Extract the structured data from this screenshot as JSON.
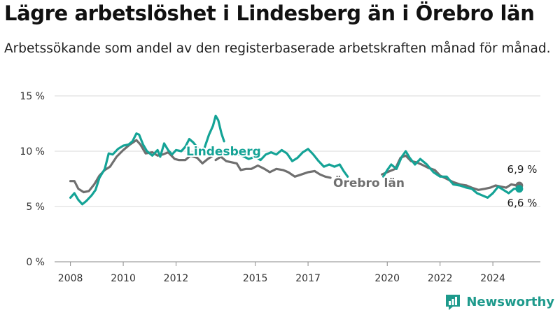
{
  "brand": {
    "name": "Newsworthy",
    "icon": "bar-chart-logo-icon",
    "color": "#1e9a8c"
  },
  "chart_data": {
    "type": "line",
    "title": "Lägre arbetslöshet i Lindesberg än i Örebro län",
    "subtitle": "Arbetssökande som andel av den registerbaserade arbetskraften månad för månad.",
    "xlabel": "",
    "ylabel": "",
    "xlim": [
      2007.4,
      2025.8
    ],
    "ylim": [
      0,
      15
    ],
    "y_ticks": [
      {
        "value": 0,
        "label": "0 %"
      },
      {
        "value": 5,
        "label": "5 %"
      },
      {
        "value": 10,
        "label": "10 %"
      },
      {
        "value": 15,
        "label": "15 %"
      }
    ],
    "x_ticks": [
      {
        "value": 2008,
        "label": "2008"
      },
      {
        "value": 2010,
        "label": "2010"
      },
      {
        "value": 2012,
        "label": "2012"
      },
      {
        "value": 2015,
        "label": "2015"
      },
      {
        "value": 2017,
        "label": "2017"
      },
      {
        "value": 2020,
        "label": "2020"
      },
      {
        "value": 2022,
        "label": "2022"
      },
      {
        "value": 2024,
        "label": "2024"
      }
    ],
    "grid": "horizontal",
    "series": [
      {
        "name": "Örebro län",
        "color": "#6f6f6f",
        "end_label": "6,9 %",
        "segments": [
          [
            [
              2008.0,
              7.3
            ],
            [
              2008.15,
              7.3
            ],
            [
              2008.3,
              6.6
            ],
            [
              2008.5,
              6.3
            ],
            [
              2008.7,
              6.4
            ],
            [
              2008.9,
              7.0
            ],
            [
              2009.1,
              7.8
            ],
            [
              2009.3,
              8.3
            ],
            [
              2009.5,
              8.6
            ],
            [
              2009.75,
              9.5
            ],
            [
              2010.0,
              10.1
            ],
            [
              2010.25,
              10.6
            ],
            [
              2010.5,
              11.0
            ],
            [
              2010.65,
              10.6
            ],
            [
              2010.85,
              9.8
            ],
            [
              2011.1,
              9.9
            ],
            [
              2011.3,
              9.6
            ],
            [
              2011.5,
              9.7
            ],
            [
              2011.7,
              9.9
            ],
            [
              2011.95,
              9.3
            ],
            [
              2012.1,
              9.2
            ],
            [
              2012.35,
              9.2
            ],
            [
              2012.55,
              9.6
            ],
            [
              2012.8,
              9.4
            ],
            [
              2013.0,
              8.9
            ],
            [
              2013.2,
              9.3
            ],
            [
              2013.4,
              9.6
            ]
          ],
          [
            [
              2013.5,
              9.2
            ],
            [
              2013.7,
              9.5
            ],
            [
              2013.9,
              9.1
            ],
            [
              2014.1,
              9.0
            ],
            [
              2014.3,
              8.9
            ],
            [
              2014.45,
              8.3
            ],
            [
              2014.65,
              8.4
            ],
            [
              2014.85,
              8.4
            ],
            [
              2015.1,
              8.7
            ],
            [
              2015.35,
              8.4
            ],
            [
              2015.55,
              8.1
            ],
            [
              2015.8,
              8.4
            ],
            [
              2016.05,
              8.3
            ],
            [
              2016.25,
              8.1
            ],
            [
              2016.5,
              7.7
            ],
            [
              2016.75,
              7.9
            ],
            [
              2017.0,
              8.1
            ],
            [
              2017.25,
              8.2
            ],
            [
              2017.45,
              7.9
            ],
            [
              2017.65,
              7.7
            ],
            [
              2017.85,
              7.6
            ]
          ],
          [
            [
              2019.8,
              7.9
            ],
            [
              2020.1,
              8.2
            ],
            [
              2020.3,
              8.4
            ],
            [
              2020.5,
              9.4
            ],
            [
              2020.7,
              9.6
            ],
            [
              2020.9,
              9.1
            ],
            [
              2021.1,
              9.0
            ],
            [
              2021.3,
              8.8
            ],
            [
              2021.55,
              8.5
            ],
            [
              2021.8,
              8.3
            ],
            [
              2022.0,
              7.8
            ],
            [
              2022.25,
              7.5
            ],
            [
              2022.5,
              7.2
            ],
            [
              2022.75,
              7.0
            ],
            [
              2023.0,
              6.9
            ],
            [
              2023.2,
              6.7
            ],
            [
              2023.45,
              6.5
            ],
            [
              2023.7,
              6.6
            ],
            [
              2023.9,
              6.7
            ],
            [
              2024.1,
              6.9
            ],
            [
              2024.3,
              6.8
            ],
            [
              2024.5,
              6.7
            ],
            [
              2024.7,
              7.0
            ],
            [
              2024.9,
              6.9
            ],
            [
              2025.0,
              6.9
            ]
          ]
        ]
      },
      {
        "name": "Lindesberg",
        "color": "#14a396",
        "end_label": "6,6 %",
        "segments": [
          [
            [
              2008.0,
              5.8
            ],
            [
              2008.15,
              6.2
            ],
            [
              2008.3,
              5.6
            ],
            [
              2008.45,
              5.2
            ],
            [
              2008.6,
              5.5
            ],
            [
              2008.8,
              6.0
            ],
            [
              2008.95,
              6.5
            ],
            [
              2009.1,
              7.6
            ],
            [
              2009.3,
              8.4
            ],
            [
              2009.45,
              9.8
            ],
            [
              2009.6,
              9.7
            ],
            [
              2009.8,
              10.2
            ],
            [
              2010.0,
              10.5
            ],
            [
              2010.2,
              10.6
            ],
            [
              2010.35,
              10.9
            ],
            [
              2010.5,
              11.6
            ],
            [
              2010.6,
              11.5
            ],
            [
              2010.75,
              10.6
            ],
            [
              2010.9,
              10.0
            ],
            [
              2011.1,
              9.6
            ],
            [
              2011.3,
              10.1
            ],
            [
              2011.4,
              9.5
            ],
            [
              2011.55,
              10.7
            ],
            [
              2011.7,
              10.1
            ],
            [
              2011.85,
              9.7
            ],
            [
              2012.0,
              10.1
            ],
            [
              2012.2,
              10.0
            ],
            [
              2012.35,
              10.4
            ],
            [
              2012.5,
              11.1
            ],
            [
              2012.65,
              10.8
            ],
            [
              2012.85,
              10.2
            ],
            [
              2013.05,
              10.1
            ],
            [
              2013.25,
              11.5
            ],
            [
              2013.4,
              12.3
            ],
            [
              2013.5,
              13.2
            ],
            [
              2013.6,
              12.8
            ],
            [
              2013.72,
              11.6
            ],
            [
              2013.82,
              10.9
            ]
          ],
          [
            [
              2014.0,
              9.9
            ],
            [
              2014.25,
              9.8
            ],
            [
              2014.5,
              9.6
            ],
            [
              2014.75,
              9.3
            ],
            [
              2015.0,
              9.5
            ],
            [
              2015.2,
              9.2
            ],
            [
              2015.4,
              9.7
            ],
            [
              2015.6,
              9.9
            ],
            [
              2015.8,
              9.7
            ],
            [
              2016.0,
              10.1
            ],
            [
              2016.2,
              9.8
            ],
            [
              2016.4,
              9.1
            ],
            [
              2016.6,
              9.4
            ],
            [
              2016.8,
              9.9
            ],
            [
              2017.0,
              10.2
            ],
            [
              2017.2,
              9.7
            ],
            [
              2017.4,
              9.1
            ],
            [
              2017.6,
              8.6
            ],
            [
              2017.8,
              8.8
            ],
            [
              2018.0,
              8.6
            ],
            [
              2018.2,
              8.8
            ],
            [
              2018.35,
              8.2
            ],
            [
              2018.5,
              7.7
            ]
          ],
          [
            [
              2019.85,
              7.7
            ],
            [
              2020.0,
              8.3
            ],
            [
              2020.15,
              8.8
            ],
            [
              2020.35,
              8.4
            ],
            [
              2020.55,
              9.5
            ],
            [
              2020.7,
              10.0
            ],
            [
              2020.85,
              9.4
            ],
            [
              2021.05,
              8.8
            ],
            [
              2021.25,
              9.3
            ],
            [
              2021.5,
              8.8
            ],
            [
              2021.75,
              8.1
            ],
            [
              2022.0,
              7.7
            ],
            [
              2022.25,
              7.7
            ],
            [
              2022.5,
              7.0
            ],
            [
              2022.75,
              6.9
            ],
            [
              2023.0,
              6.7
            ],
            [
              2023.2,
              6.6
            ],
            [
              2023.4,
              6.2
            ],
            [
              2023.6,
              6.0
            ],
            [
              2023.8,
              5.8
            ],
            [
              2024.0,
              6.2
            ],
            [
              2024.2,
              6.8
            ],
            [
              2024.4,
              6.5
            ],
            [
              2024.6,
              6.2
            ],
            [
              2024.8,
              6.6
            ],
            [
              2025.0,
              6.6
            ]
          ]
        ]
      }
    ]
  }
}
